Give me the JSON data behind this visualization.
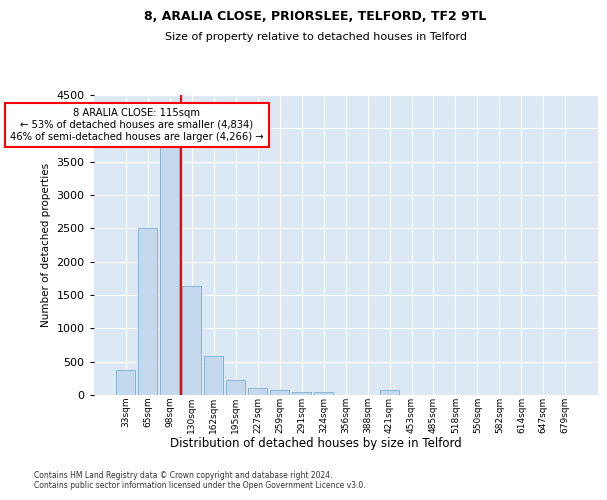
{
  "title": "8, ARALIA CLOSE, PRIORSLEE, TELFORD, TF2 9TL",
  "subtitle": "Size of property relative to detached houses in Telford",
  "xlabel": "Distribution of detached houses by size in Telford",
  "ylabel": "Number of detached properties",
  "bar_color": "#c5d9ee",
  "bar_edge_color": "#7aadd4",
  "bg_color": "#dce9f5",
  "grid_color": "#ffffff",
  "annotation_text": "8 ARALIA CLOSE: 115sqm\n← 53% of detached houses are smaller (4,834)\n46% of semi-detached houses are larger (4,266) →",
  "vline_color": "red",
  "categories": [
    "33sqm",
    "65sqm",
    "98sqm",
    "130sqm",
    "162sqm",
    "195sqm",
    "227sqm",
    "259sqm",
    "291sqm",
    "324sqm",
    "356sqm",
    "388sqm",
    "421sqm",
    "453sqm",
    "485sqm",
    "518sqm",
    "550sqm",
    "582sqm",
    "614sqm",
    "647sqm",
    "679sqm"
  ],
  "values": [
    370,
    2500,
    3720,
    1630,
    590,
    230,
    110,
    70,
    50,
    40,
    0,
    0,
    70,
    0,
    0,
    0,
    0,
    0,
    0,
    0,
    0
  ],
  "ylim": [
    0,
    4500
  ],
  "yticks": [
    0,
    500,
    1000,
    1500,
    2000,
    2500,
    3000,
    3500,
    4000,
    4500
  ],
  "footnote": "Contains HM Land Registry data © Crown copyright and database right 2024.\nContains public sector information licensed under the Open Government Licence v3.0.",
  "vline_bin_index": 2.5
}
